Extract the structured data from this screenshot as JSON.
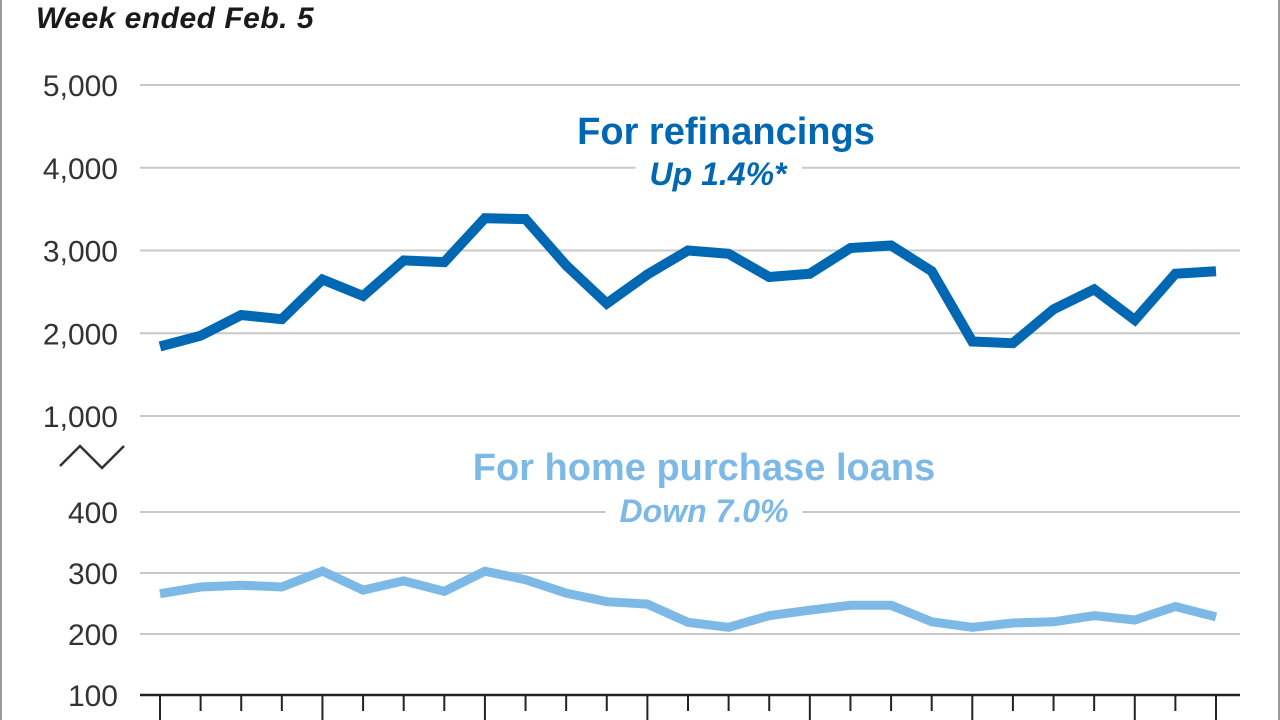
{
  "subtitle": "Week ended Feb. 5",
  "colors": {
    "refinance": "#0068b3",
    "purchase": "#7db9e6",
    "grid": "#c8c8c8",
    "text": "#333333"
  },
  "chart_data": {
    "type": "line",
    "subtitle": "Week ended Feb. 5",
    "broken_axis": true,
    "panels": [
      {
        "name": "upper",
        "yticks": [
          1000,
          2000,
          3000,
          4000,
          5000
        ],
        "yticklabels": [
          "1,000",
          "2,000",
          "3,000",
          "4,000",
          "5,000"
        ],
        "ylim": [
          1000,
          5000
        ],
        "grid": true
      },
      {
        "name": "lower",
        "yticks": [
          100,
          200,
          300,
          400
        ],
        "yticklabels": [
          "100",
          "200",
          "300",
          "400"
        ],
        "ylim": [
          100,
          400
        ],
        "grid": true
      }
    ],
    "x_count": 27,
    "series": [
      {
        "name": "For refinancings",
        "annotation": "Up 1.4%*",
        "panel": "upper",
        "color": "#0068b3",
        "values": [
          1840,
          1970,
          2220,
          2170,
          2650,
          2450,
          2880,
          2860,
          3390,
          3380,
          2820,
          2360,
          2710,
          3000,
          2960,
          2680,
          2720,
          3030,
          3060,
          2750,
          1900,
          1880,
          2290,
          2530,
          2160,
          2720,
          2750
        ]
      },
      {
        "name": "For home purchase loans",
        "annotation": "Down 7.0%",
        "panel": "lower",
        "color": "#7db9e6",
        "values": [
          266,
          277,
          280,
          277,
          303,
          272,
          287,
          270,
          303,
          289,
          267,
          253,
          249,
          219,
          211,
          230,
          239,
          247,
          247,
          220,
          211,
          218,
          220,
          230,
          223,
          245,
          228
        ]
      }
    ]
  }
}
